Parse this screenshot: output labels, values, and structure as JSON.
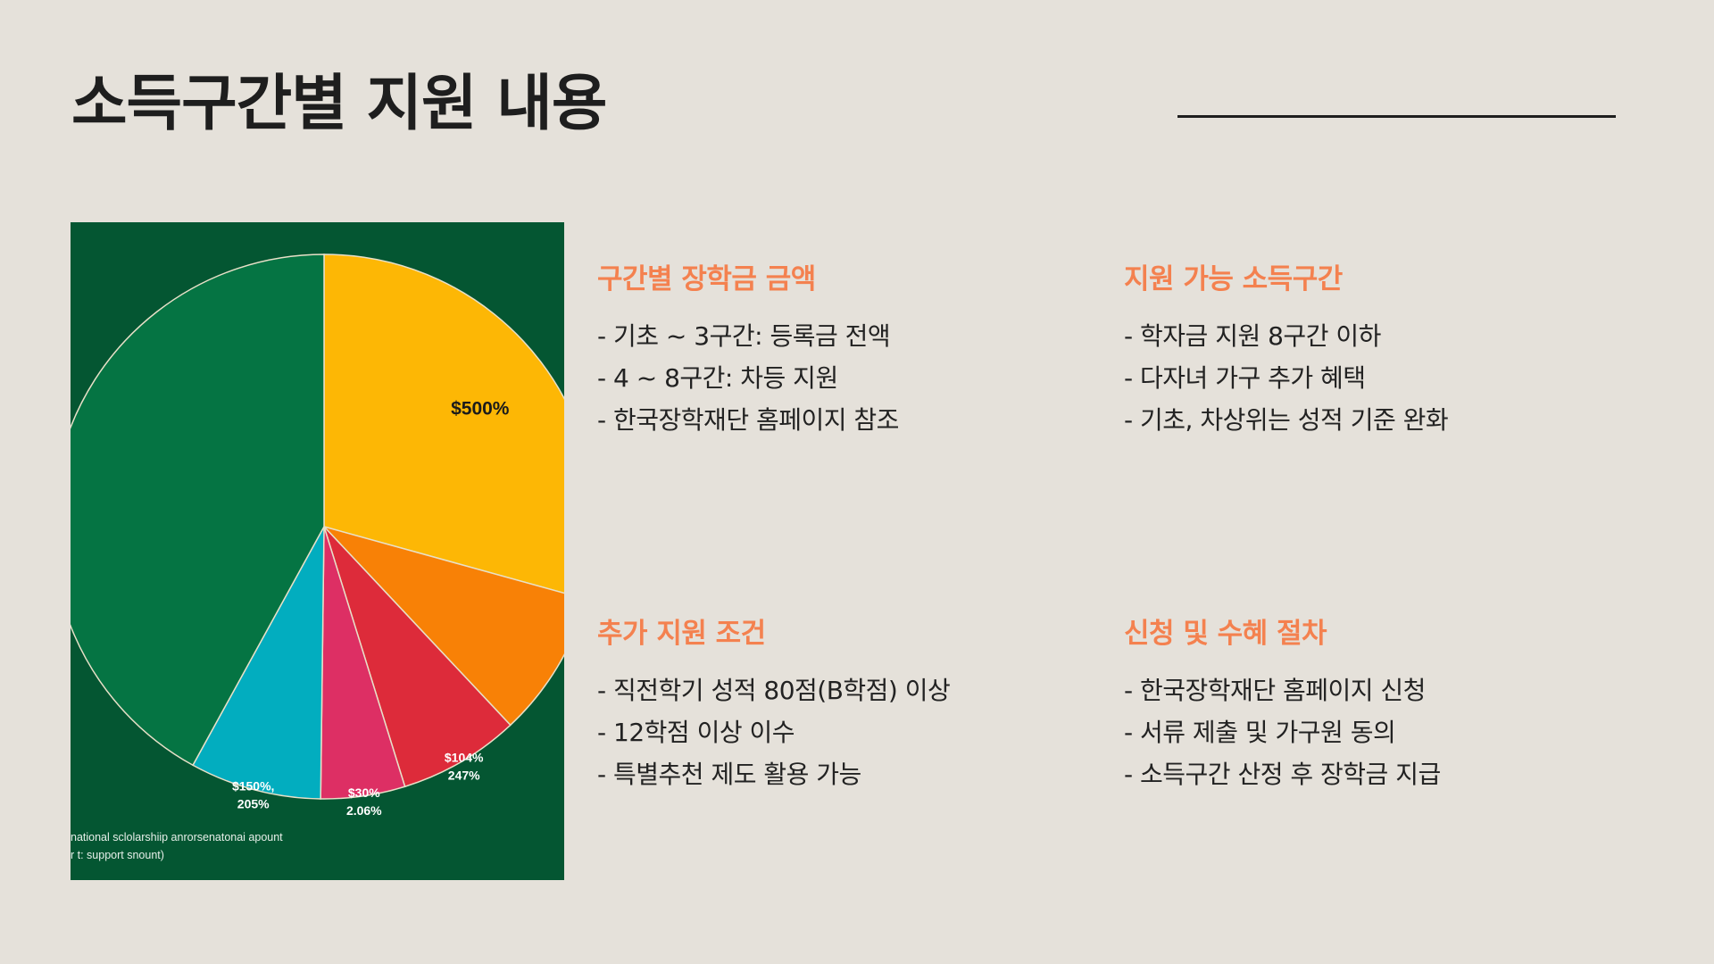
{
  "slide": {
    "title": "소득구간별 지원 내용"
  },
  "sections": [
    {
      "heading": "구간별 장학금 금액",
      "items": [
        "기초 ~ 3구간: 등록금 전액",
        "4 ~ 8구간: 차등 지원",
        "한국장학재단 홈페이지 참조"
      ]
    },
    {
      "heading": "지원 가능 소득구간",
      "items": [
        "학자금 지원 8구간 이하",
        "다자녀 가구 추가 혜택",
        "기초, 차상위는 성적 기준 완화"
      ]
    },
    {
      "heading": "추가 지원 조건",
      "items": [
        "직전학기 성적 80점(B학점) 이상",
        "12학점 이상 이수",
        "특별추천 제도 활용 가능"
      ]
    },
    {
      "heading": "신청 및 수혜 절차",
      "items": [
        "한국장학재단 홈페이지 신청",
        "서류 제출 및 가구원 동의",
        "소득구간 산정 후 장학금 지급"
      ]
    }
  ],
  "chart_data": {
    "type": "pie",
    "background_color": "#045632",
    "slices": [
      {
        "label_lines": [
          "$500%"
        ],
        "fraction": 0.293,
        "color": "#fdb705"
      },
      {
        "label_lines": [],
        "fraction": 0.087,
        "color": "#f88106"
      },
      {
        "label_lines": [
          "$104%",
          "247%"
        ],
        "fraction": 0.072,
        "color": "#dd2b3a"
      },
      {
        "label_lines": [
          "$30%",
          "2.06%"
        ],
        "fraction": 0.05,
        "color": "#dd2f64"
      },
      {
        "label_lines": [
          "$150%,",
          "205%"
        ],
        "fraction": 0.078,
        "color": "#02adbf"
      },
      {
        "label_lines": [],
        "fraction": 0.42,
        "color": "#057443"
      }
    ],
    "caption_lines": [
      "national sclolarshiip anrorsenatonai apount",
      "r t: support snount)"
    ]
  }
}
